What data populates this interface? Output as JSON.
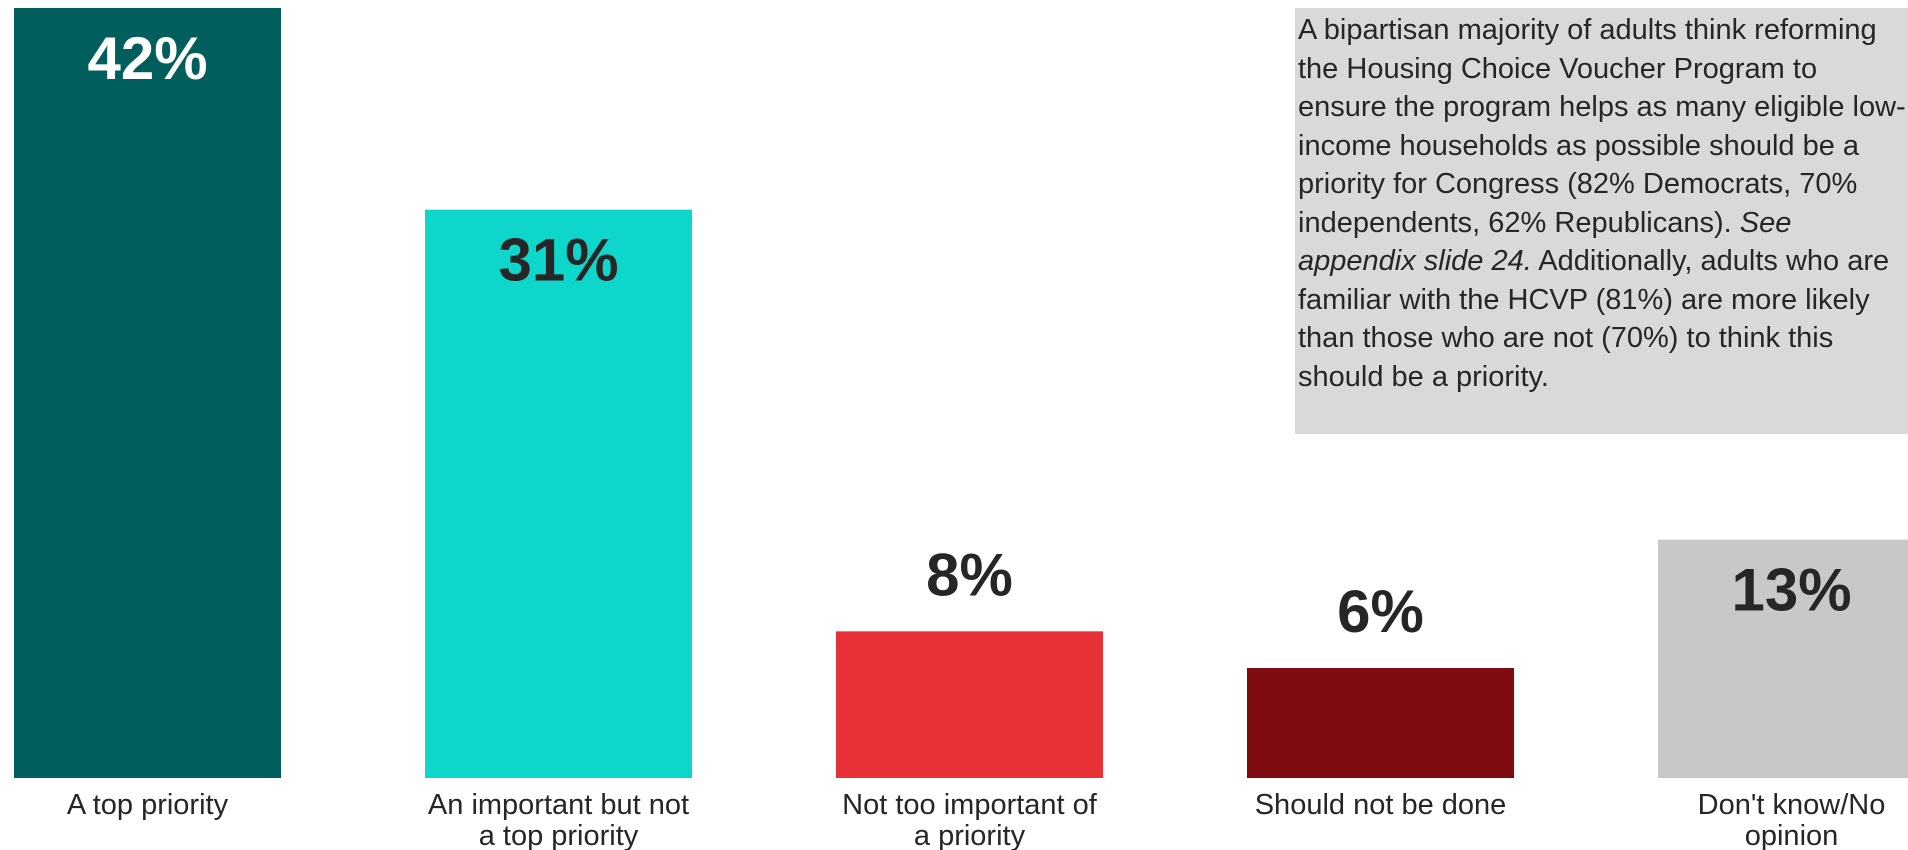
{
  "chart_data": {
    "type": "bar",
    "title": "",
    "xlabel": "",
    "ylabel": "",
    "ylim": [
      0,
      42
    ],
    "grid": false,
    "legend": "none",
    "categories": [
      "A top priority",
      "An important but not a top priority",
      "Not too important of a priority",
      "Should not be done",
      "Don't know/No opinion"
    ],
    "category_lines": [
      [
        "A top priority"
      ],
      [
        "An important but not",
        "a top priority"
      ],
      [
        "Not too important of",
        "a priority"
      ],
      [
        "Should not be done"
      ],
      [
        "Don't know/No",
        "opinion"
      ]
    ],
    "values": [
      42,
      31,
      8,
      6,
      13
    ],
    "value_labels": [
      "42%",
      "31%",
      "8%",
      "6%",
      "13%"
    ],
    "colors": [
      "#005f5d",
      "#0fd6cb",
      "#e83137",
      "#7f0c10",
      "#c8c8c8"
    ],
    "label_colors": [
      "#ffffff",
      "#262626",
      "#262626",
      "#262626",
      "#262626"
    ],
    "label_inside": [
      true,
      true,
      false,
      false,
      true
    ]
  },
  "callout": {
    "text_before": "A bipartisan majority of adults think reforming the Housing Choice Voucher Program to ensure the program helps as many eligible low-income households as possible should be a priority for Congress (82% Democrats, 70% independents, 62% Republicans). ",
    "text_italic": "See appendix slide 24.",
    "text_after": " Additionally, adults who are familiar with the HCVP (81%) are more likely than those who are not (70%) to think this should be a priority.",
    "background": "#d9d9d9"
  }
}
